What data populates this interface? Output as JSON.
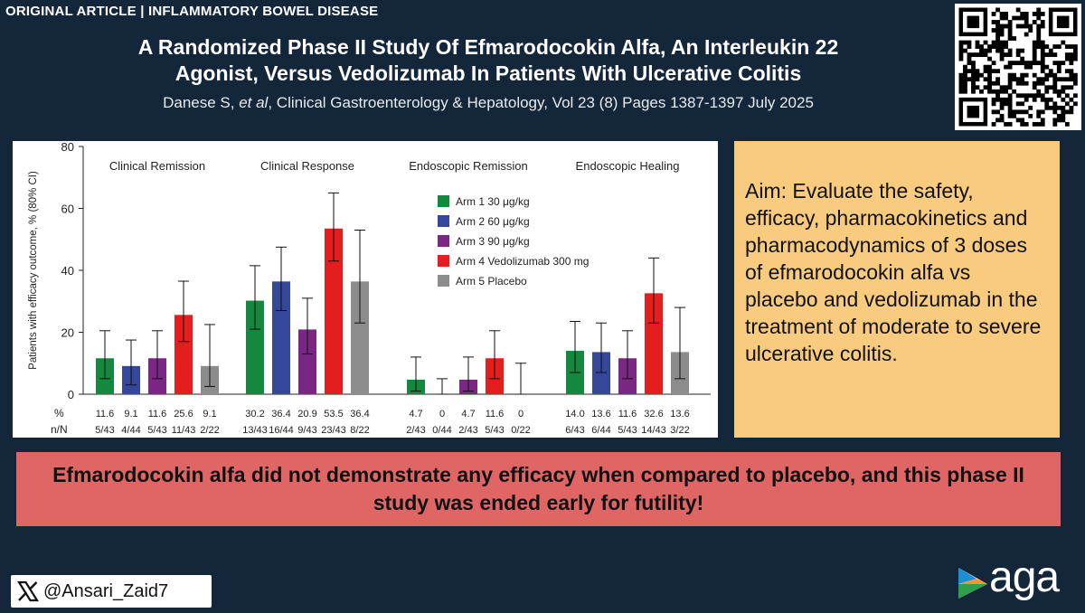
{
  "header": {
    "tag": "ORIGINAL ARTICLE | INFLAMMATORY BOWEL DISEASE",
    "title_line1": "A Randomized Phase II Study Of Efmarodocokin Alfa, An Interleukin 22",
    "title_line2": "Agonist, Versus Vedolizumab In Patients With Ulcerative Colitis",
    "citation_authors": "Danese S, ",
    "citation_etal": "et al",
    "citation_rest": ", Clinical Gastroenterology & Hepatology, Vol 23 (8) Pages 1387-1397 July 2025"
  },
  "aim": "Aim: Evaluate the safety, efficacy, pharmacokinetics and pharmacodynamics of 3 doses of efmarodocokin alfa vs placebo and vedolizumab in the treatment of moderate to severe ulcerative colitis.",
  "conclusion": "Efmarodocokin alfa did not demonstrate any efficacy when compared to placebo, and this phase II study was ended early for futility!",
  "footer": {
    "handle": "@Ansari_Zaid7",
    "logo_text": "aga"
  },
  "colors": {
    "arm1": "#15873f",
    "arm2": "#34479a",
    "arm3": "#7a2683",
    "arm4": "#e41e1e",
    "arm5": "#8c8c8c",
    "background": "#13263a",
    "aim_box": "#f8cb7e",
    "conclusion_box": "#e06666"
  },
  "chart_data": {
    "type": "bar",
    "ylabel": "Patients with efficacy outcome, % (80% CI)",
    "ylim": [
      0,
      80
    ],
    "yticks": [
      0,
      20,
      40,
      60,
      80
    ],
    "row_labels": {
      "percent": "%",
      "count": "n/N"
    },
    "legend": [
      "Arm 1 30 μg/kg",
      "Arm 2 60 μg/kg",
      "Arm 3 90 μg/kg",
      "Arm 4 Vedolizumab 300 mg",
      "Arm 5 Placebo"
    ],
    "legend_position": "top-center",
    "grid": false,
    "groups": [
      {
        "name": "Clinical Remission",
        "values": [
          11.6,
          9.1,
          11.6,
          25.6,
          9.1
        ],
        "labels": [
          "11.6",
          "9.1",
          "11.6",
          "25.6",
          "9.1"
        ],
        "ci_low": [
          5,
          3,
          5,
          17,
          2.5
        ],
        "ci_high": [
          20.5,
          17.5,
          20.5,
          36.5,
          22.5
        ],
        "counts": [
          "5/43",
          "4/44",
          "5/43",
          "11/43",
          "2/22"
        ]
      },
      {
        "name": "Clinical Response",
        "values": [
          30.2,
          36.4,
          20.9,
          53.5,
          36.4
        ],
        "labels": [
          "30.2",
          "36.4",
          "20.9",
          "53.5",
          "36.4"
        ],
        "ci_low": [
          21,
          27,
          13,
          43,
          23
        ],
        "ci_high": [
          41.5,
          47.5,
          31,
          65,
          53
        ],
        "counts": [
          "13/43",
          "16/44",
          "9/43",
          "23/43",
          "8/22"
        ]
      },
      {
        "name": "Endoscopic Remission",
        "values": [
          4.7,
          0,
          4.7,
          11.6,
          0
        ],
        "labels": [
          "4.7",
          "0",
          "4.7",
          "11.6",
          "0"
        ],
        "ci_low": [
          1,
          0,
          1,
          5,
          0
        ],
        "ci_high": [
          12,
          5,
          12,
          20.5,
          10
        ],
        "counts": [
          "2/43",
          "0/44",
          "2/43",
          "5/43",
          "0/22"
        ]
      },
      {
        "name": "Endoscopic Healing",
        "values": [
          14.0,
          13.6,
          11.6,
          32.6,
          13.6
        ],
        "labels": [
          "14.0",
          "13.6",
          "11.6",
          "32.6",
          "13.6"
        ],
        "ci_low": [
          7,
          7,
          5,
          23,
          5
        ],
        "ci_high": [
          23.5,
          23,
          20.5,
          44,
          28
        ],
        "counts": [
          "6/43",
          "6/44",
          "5/43",
          "14/43",
          "3/22"
        ]
      }
    ]
  }
}
